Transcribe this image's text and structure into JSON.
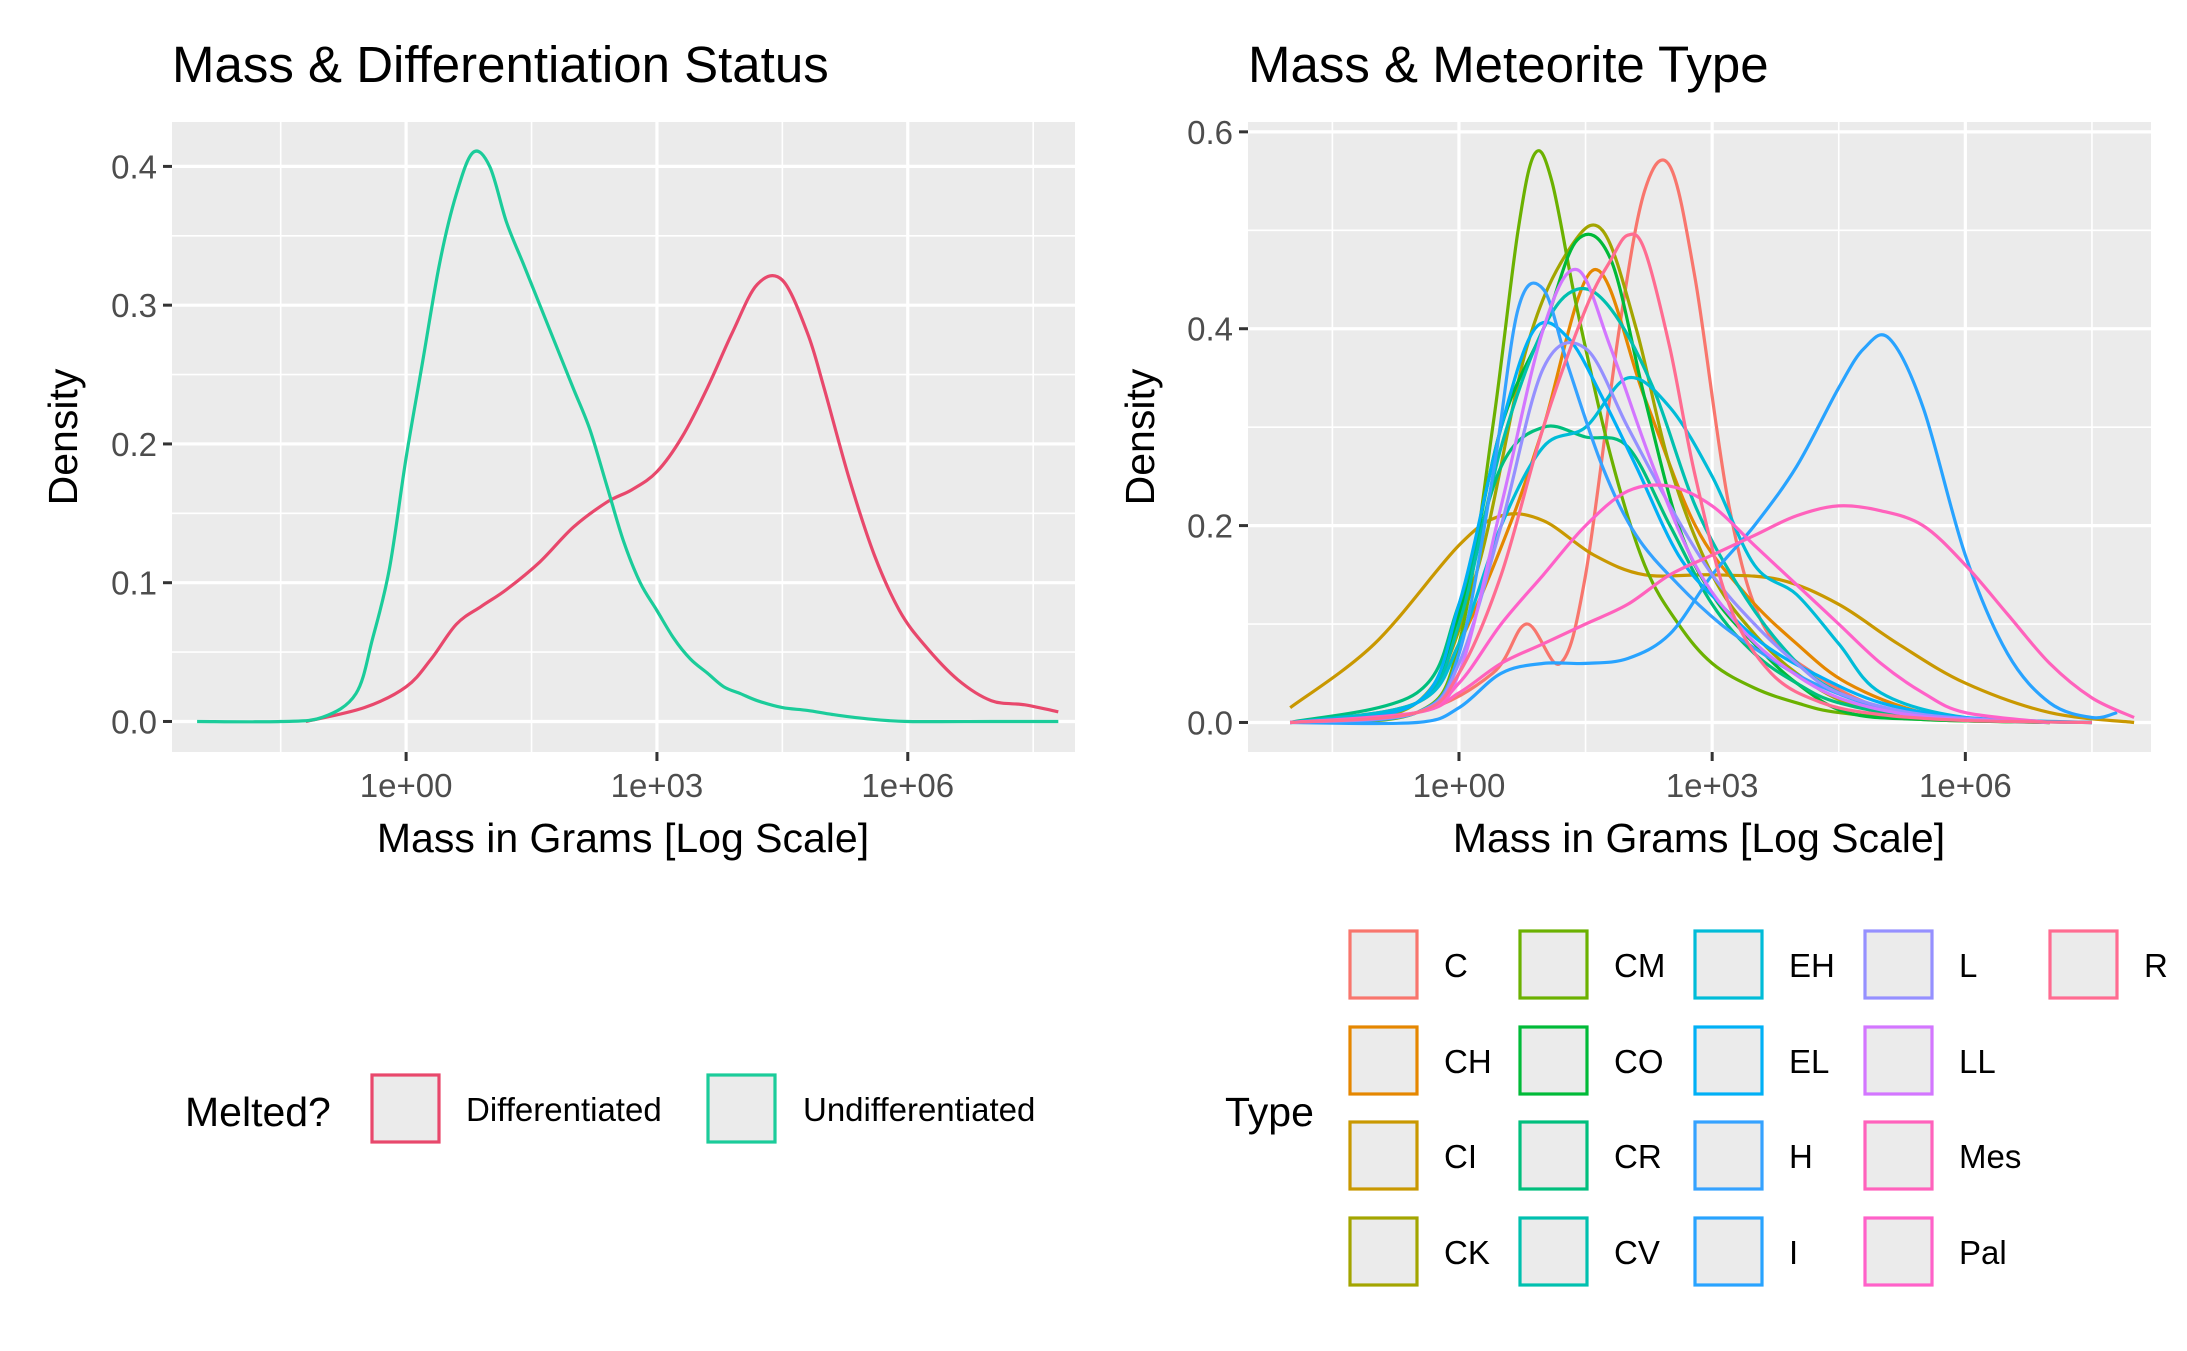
{
  "chart_data": [
    {
      "type": "line",
      "title": "Mass & Differentiation Status",
      "xlabel": "Mass in Grams [Log Scale]",
      "ylabel": "Density",
      "x_scale": "log10",
      "xlim_log10": [
        -2.8,
        8.0
      ],
      "ylim": [
        -0.022,
        0.432
      ],
      "x_ticks": [
        {
          "log10": 0,
          "label": "1e+00"
        },
        {
          "log10": 3,
          "label": "1e+03"
        },
        {
          "log10": 6,
          "label": "1e+06"
        }
      ],
      "y_ticks": [
        {
          "value": 0.0,
          "label": "0.0"
        },
        {
          "value": 0.1,
          "label": "0.1"
        },
        {
          "value": 0.2,
          "label": "0.2"
        },
        {
          "value": 0.3,
          "label": "0.3"
        },
        {
          "value": 0.4,
          "label": "0.4"
        }
      ],
      "legend": {
        "title": "Melted?",
        "position": "bottom"
      },
      "series": [
        {
          "name": "Differentiated",
          "color": "#E8486C",
          "x_log10": [
            -1.2,
            -0.5,
            0.0,
            0.3,
            0.6,
            0.9,
            1.2,
            1.6,
            2.0,
            2.4,
            2.7,
            3.0,
            3.3,
            3.6,
            3.9,
            4.2,
            4.5,
            4.8,
            5.0,
            5.3,
            5.6,
            5.9,
            6.2,
            6.6,
            7.0,
            7.4,
            7.8
          ],
          "y": [
            0.0,
            0.01,
            0.025,
            0.045,
            0.07,
            0.083,
            0.095,
            0.115,
            0.14,
            0.158,
            0.167,
            0.18,
            0.205,
            0.24,
            0.28,
            0.315,
            0.318,
            0.28,
            0.24,
            0.175,
            0.12,
            0.08,
            0.055,
            0.03,
            0.015,
            0.012,
            0.007
          ]
        },
        {
          "name": "Undifferentiated",
          "color": "#1BCC9A",
          "x_log10": [
            -2.5,
            -1.5,
            -1.0,
            -0.6,
            -0.4,
            -0.2,
            0.0,
            0.2,
            0.4,
            0.6,
            0.8,
            1.0,
            1.2,
            1.4,
            1.6,
            1.8,
            2.0,
            2.2,
            2.4,
            2.6,
            2.8,
            3.0,
            3.2,
            3.4,
            3.6,
            3.8,
            4.0,
            4.2,
            4.5,
            4.8,
            5.1,
            5.5,
            6.0,
            7.0,
            7.8
          ],
          "y": [
            0.0,
            0.0,
            0.003,
            0.02,
            0.06,
            0.11,
            0.19,
            0.26,
            0.33,
            0.38,
            0.41,
            0.4,
            0.36,
            0.33,
            0.3,
            0.27,
            0.24,
            0.21,
            0.17,
            0.13,
            0.1,
            0.08,
            0.06,
            0.045,
            0.035,
            0.025,
            0.02,
            0.015,
            0.01,
            0.008,
            0.005,
            0.002,
            0.0,
            0.0,
            0.0
          ]
        }
      ]
    },
    {
      "type": "line",
      "title": "Mass & Meteorite Type",
      "xlabel": "Mass in Grams [Log Scale]",
      "ylabel": "Density",
      "x_scale": "log10",
      "xlim_log10": [
        -2.5,
        8.2
      ],
      "ylim": [
        -0.03,
        0.61
      ],
      "x_ticks": [
        {
          "log10": 0,
          "label": "1e+00"
        },
        {
          "log10": 3,
          "label": "1e+03"
        },
        {
          "log10": 6,
          "label": "1e+06"
        }
      ],
      "y_ticks": [
        {
          "value": 0.0,
          "label": "0.0"
        },
        {
          "value": 0.2,
          "label": "0.2"
        },
        {
          "value": 0.4,
          "label": "0.4"
        },
        {
          "value": 0.6,
          "label": "0.6"
        }
      ],
      "legend": {
        "title": "Type",
        "position": "bottom"
      },
      "series": [
        {
          "name": "C",
          "color": "#F8766D",
          "x_log10": [
            -2.0,
            -0.5,
            0.4,
            0.8,
            1.2,
            1.5,
            1.9,
            2.2,
            2.5,
            2.8,
            3.2,
            3.6,
            4.2,
            5.0,
            6.0,
            7.5
          ],
          "y": [
            0.0,
            0.01,
            0.05,
            0.1,
            0.06,
            0.15,
            0.4,
            0.54,
            0.565,
            0.45,
            0.22,
            0.1,
            0.05,
            0.015,
            0.003,
            0.0
          ]
        },
        {
          "name": "CH",
          "color": "#E58700",
          "x_log10": [
            -2.0,
            -0.5,
            0.0,
            0.6,
            1.0,
            1.6,
            2.2,
            2.8,
            3.4,
            4.0,
            4.6,
            5.5,
            6.5,
            7.5
          ],
          "y": [
            0.0,
            0.02,
            0.08,
            0.2,
            0.3,
            0.46,
            0.33,
            0.2,
            0.13,
            0.08,
            0.04,
            0.01,
            0.002,
            0.0
          ]
        },
        {
          "name": "CI",
          "color": "#C99800",
          "x_log10": [
            -2.0,
            -1.0,
            0.0,
            0.5,
            1.0,
            1.6,
            2.2,
            3.0,
            3.8,
            4.5,
            5.2,
            6.0,
            7.0,
            8.0
          ],
          "y": [
            0.015,
            0.08,
            0.18,
            0.21,
            0.205,
            0.17,
            0.15,
            0.15,
            0.145,
            0.12,
            0.08,
            0.04,
            0.01,
            0.0
          ]
        },
        {
          "name": "CK",
          "color": "#A3A500",
          "x_log10": [
            -2.0,
            -0.5,
            0.2,
            0.8,
            1.3,
            1.7,
            2.1,
            2.5,
            3.0,
            3.5,
            4.0,
            4.6,
            5.5,
            7.0
          ],
          "y": [
            0.0,
            0.02,
            0.15,
            0.38,
            0.48,
            0.5,
            0.4,
            0.26,
            0.15,
            0.09,
            0.05,
            0.02,
            0.005,
            0.0
          ]
        },
        {
          "name": "CM",
          "color": "#6BB100",
          "x_log10": [
            -2.0,
            -0.5,
            0.0,
            0.4,
            0.7,
            0.9,
            1.1,
            1.4,
            1.8,
            2.2,
            2.6,
            3.0,
            3.5,
            4.0,
            4.5,
            5.5,
            7.0
          ],
          "y": [
            0.0,
            0.01,
            0.08,
            0.3,
            0.5,
            0.578,
            0.55,
            0.42,
            0.27,
            0.16,
            0.1,
            0.06,
            0.035,
            0.02,
            0.01,
            0.003,
            0.0
          ]
        },
        {
          "name": "CO",
          "color": "#00BA38",
          "x_log10": [
            -2.0,
            -0.5,
            0.0,
            0.5,
            1.0,
            1.4,
            1.8,
            2.2,
            2.6,
            3.0,
            3.5,
            4.0,
            4.6,
            5.5,
            7.0
          ],
          "y": [
            0.0,
            0.02,
            0.11,
            0.3,
            0.4,
            0.49,
            0.47,
            0.33,
            0.2,
            0.13,
            0.08,
            0.04,
            0.01,
            0.003,
            0.0
          ]
        },
        {
          "name": "CR",
          "color": "#00BF7D",
          "x_log10": [
            -2.0,
            -0.5,
            0.0,
            0.5,
            1.0,
            1.5,
            2.0,
            2.5,
            3.0,
            3.5,
            4.0,
            4.5,
            5.5,
            7.0
          ],
          "y": [
            0.0,
            0.03,
            0.12,
            0.26,
            0.3,
            0.29,
            0.28,
            0.2,
            0.12,
            0.07,
            0.04,
            0.02,
            0.005,
            0.0
          ]
        },
        {
          "name": "CV",
          "color": "#00C0AF",
          "x_log10": [
            -2.0,
            -0.5,
            0.0,
            0.5,
            1.0,
            1.4,
            1.8,
            2.3,
            2.8,
            3.3,
            3.8,
            4.3,
            5.0,
            6.0,
            7.5
          ],
          "y": [
            0.0,
            0.02,
            0.1,
            0.28,
            0.4,
            0.44,
            0.42,
            0.34,
            0.22,
            0.14,
            0.08,
            0.04,
            0.015,
            0.003,
            0.0
          ]
        },
        {
          "name": "EH",
          "color": "#00BCD8",
          "x_log10": [
            -2.0,
            -0.5,
            0.0,
            0.5,
            1.0,
            1.5,
            2.0,
            2.5,
            3.0,
            3.5,
            4.0,
            4.5,
            5.0,
            6.0,
            7.5
          ],
          "y": [
            0.0,
            0.02,
            0.08,
            0.2,
            0.28,
            0.3,
            0.35,
            0.32,
            0.25,
            0.16,
            0.13,
            0.08,
            0.03,
            0.005,
            0.0
          ]
        },
        {
          "name": "EL",
          "color": "#00B0F6",
          "x_log10": [
            -2.0,
            -0.5,
            0.0,
            0.5,
            0.9,
            1.3,
            1.7,
            2.1,
            2.6,
            3.1,
            3.6,
            4.2,
            5.0,
            6.0,
            7.5
          ],
          "y": [
            0.0,
            0.02,
            0.12,
            0.3,
            0.4,
            0.39,
            0.33,
            0.26,
            0.17,
            0.12,
            0.08,
            0.05,
            0.02,
            0.005,
            0.0
          ]
        },
        {
          "name": "H",
          "color": "#35A2FF",
          "x_log10": [
            -2.0,
            -0.5,
            0.0,
            0.4,
            0.7,
            1.0,
            1.3,
            1.7,
            2.1,
            2.6,
            3.1,
            3.6,
            4.2,
            5.0,
            6.0,
            7.5
          ],
          "y": [
            0.0,
            0.01,
            0.07,
            0.25,
            0.42,
            0.44,
            0.36,
            0.26,
            0.19,
            0.14,
            0.1,
            0.07,
            0.04,
            0.015,
            0.003,
            0.0
          ]
        },
        {
          "name": "I",
          "color": "#28A3FF",
          "x_log10": [
            -2.0,
            -0.5,
            0.0,
            0.5,
            1.0,
            1.5,
            2.0,
            2.5,
            3.0,
            3.5,
            4.0,
            4.5,
            4.8,
            5.1,
            5.5,
            6.0,
            6.5,
            7.0,
            7.5,
            7.8
          ],
          "y": [
            0.0,
            0.0,
            0.015,
            0.05,
            0.06,
            0.06,
            0.065,
            0.09,
            0.15,
            0.2,
            0.26,
            0.34,
            0.38,
            0.39,
            0.32,
            0.17,
            0.07,
            0.02,
            0.005,
            0.01
          ]
        },
        {
          "name": "L",
          "color": "#9590FF",
          "x_log10": [
            -2.0,
            -0.5,
            0.0,
            0.5,
            1.0,
            1.5,
            2.0,
            2.5,
            3.0,
            3.5,
            4.0,
            4.5,
            5.5,
            7.0
          ],
          "y": [
            0.0,
            0.01,
            0.06,
            0.2,
            0.36,
            0.38,
            0.3,
            0.22,
            0.15,
            0.1,
            0.06,
            0.03,
            0.008,
            0.0
          ]
        },
        {
          "name": "LL",
          "color": "#D376FF",
          "x_log10": [
            -2.0,
            -0.5,
            0.0,
            0.5,
            1.0,
            1.4,
            1.8,
            2.3,
            2.8,
            3.3,
            3.8,
            4.5,
            5.5,
            7.0
          ],
          "y": [
            0.0,
            0.01,
            0.05,
            0.22,
            0.4,
            0.46,
            0.38,
            0.26,
            0.16,
            0.1,
            0.06,
            0.025,
            0.006,
            0.0
          ]
        },
        {
          "name": "Mes",
          "color": "#FF62BC",
          "x_log10": [
            -2.0,
            -0.5,
            0.0,
            0.5,
            1.0,
            1.5,
            2.0,
            2.5,
            3.0,
            3.5,
            4.0,
            4.5,
            5.0,
            5.5,
            6.0,
            6.5,
            7.0,
            7.5,
            8.0
          ],
          "y": [
            0.0,
            0.01,
            0.03,
            0.06,
            0.08,
            0.1,
            0.12,
            0.15,
            0.17,
            0.19,
            0.21,
            0.22,
            0.215,
            0.2,
            0.16,
            0.11,
            0.06,
            0.025,
            0.005
          ]
        },
        {
          "name": "Pal",
          "color": "#FF61C9",
          "x_log10": [
            -2.0,
            -0.5,
            0.0,
            0.5,
            1.0,
            1.5,
            2.0,
            2.5,
            3.0,
            3.5,
            4.0,
            4.5,
            5.0,
            5.5,
            6.0,
            7.0
          ],
          "y": [
            0.0,
            0.01,
            0.04,
            0.1,
            0.15,
            0.2,
            0.235,
            0.24,
            0.22,
            0.18,
            0.14,
            0.1,
            0.06,
            0.03,
            0.01,
            0.0
          ]
        },
        {
          "name": "R",
          "color": "#FF6C91",
          "x_log10": [
            -2.0,
            -0.5,
            0.0,
            0.5,
            1.0,
            1.5,
            1.8,
            2.0,
            2.2,
            2.5,
            2.8,
            3.2,
            3.7,
            4.3,
            5.0,
            6.0,
            7.5
          ],
          "y": [
            0.0,
            0.01,
            0.05,
            0.15,
            0.3,
            0.42,
            0.47,
            0.495,
            0.48,
            0.38,
            0.25,
            0.12,
            0.05,
            0.02,
            0.008,
            0.002,
            0.0
          ]
        }
      ]
    }
  ]
}
